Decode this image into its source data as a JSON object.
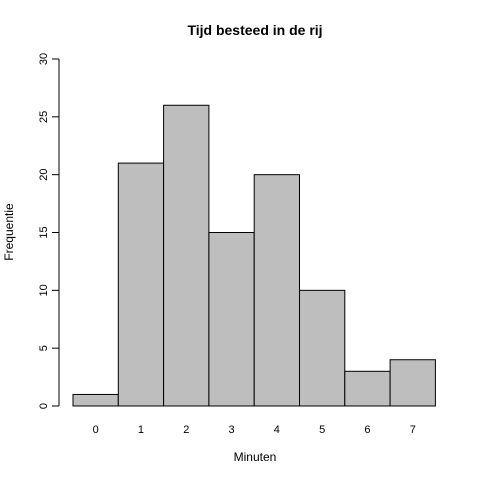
{
  "chart_data": {
    "type": "bar",
    "title": "Tijd besteed in de rij",
    "xlabel": "Minuten",
    "ylabel": "Frequentie",
    "categories": [
      "0",
      "1",
      "2",
      "3",
      "4",
      "5",
      "6",
      "7"
    ],
    "values": [
      1,
      21,
      26,
      15,
      20,
      10,
      3,
      4
    ],
    "ylim": [
      0,
      30
    ],
    "yticks": [
      0,
      5,
      10,
      15,
      20,
      25,
      30
    ],
    "grid": false,
    "colors": {
      "bar_fill": "#bebebe",
      "bar_stroke": "#000000"
    }
  }
}
